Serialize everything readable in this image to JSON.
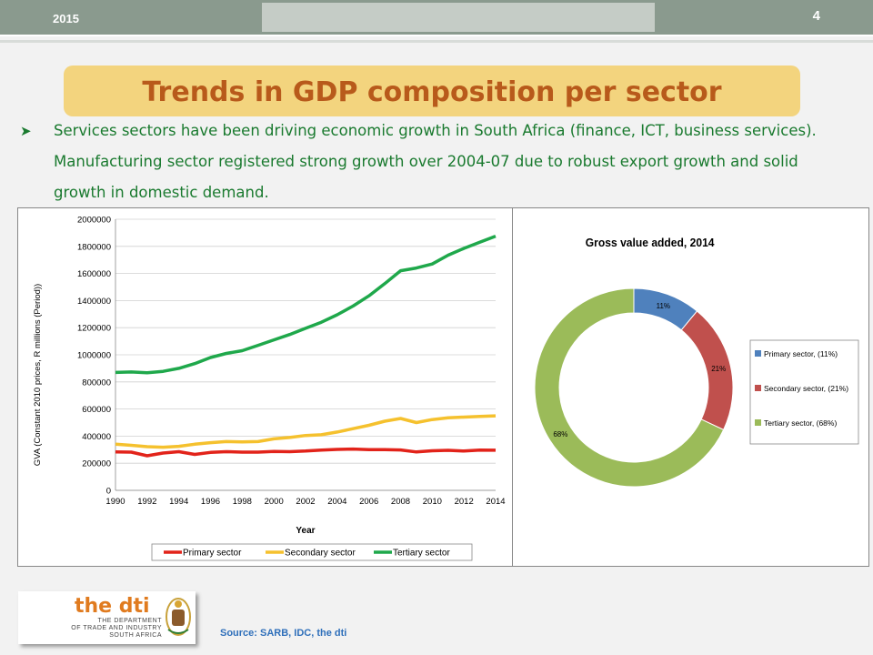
{
  "header": {
    "year": "2015",
    "page_number": "4"
  },
  "title": "Trends in GDP composition per sector",
  "bullet": "Services sectors have been driving economic growth in South Africa (finance, ICT, business services). Manufacturing sector registered strong growth over 2004-07 due to robust export growth and solid growth in domestic demand.",
  "source": "Source: SARB, IDC, the dti",
  "logo": {
    "name": "the dti",
    "dept_line1": "THE DEPARTMENT",
    "dept_line2": "OF TRADE AND INDUSTRY",
    "dept_line3": "SOUTH AFRICA"
  },
  "colors": {
    "primary": "#e2231a",
    "secondary": "#f5c12e",
    "tertiary": "#1fa84b",
    "pie_primary": "#4f81bd",
    "pie_secondary": "#c0504d",
    "pie_tertiary": "#9bbb59",
    "title_bg": "#f3d47e",
    "title_text": "#b85a1b",
    "body_text": "#1a7a2f"
  },
  "chart_data": [
    {
      "type": "line",
      "title": "",
      "xlabel": "Year",
      "ylabel": "GVA (Constant 2010 prices, R millions (Period))",
      "x": [
        1990,
        1991,
        1992,
        1993,
        1994,
        1995,
        1996,
        1997,
        1998,
        1999,
        2000,
        2001,
        2002,
        2003,
        2004,
        2005,
        2006,
        2007,
        2008,
        2009,
        2010,
        2011,
        2012,
        2013,
        2014
      ],
      "x_ticks": [
        1990,
        1992,
        1994,
        1996,
        1998,
        2000,
        2002,
        2004,
        2006,
        2008,
        2010,
        2012,
        2014
      ],
      "ylim": [
        0,
        2000000
      ],
      "y_ticks": [
        0,
        200000,
        400000,
        600000,
        800000,
        1000000,
        1200000,
        1400000,
        1600000,
        1800000,
        2000000
      ],
      "grid": true,
      "legend_position": "bottom",
      "series": [
        {
          "name": "Primary sector",
          "values": [
            283000,
            282000,
            255000,
            275000,
            285000,
            265000,
            280000,
            285000,
            282000,
            282000,
            287000,
            285000,
            290000,
            297000,
            302000,
            305000,
            300000,
            300000,
            298000,
            283000,
            292000,
            295000,
            290000,
            297000,
            296000
          ]
        },
        {
          "name": "Secondary sector",
          "values": [
            340000,
            332000,
            322000,
            318000,
            325000,
            340000,
            352000,
            360000,
            358000,
            360000,
            380000,
            390000,
            405000,
            410000,
            430000,
            455000,
            480000,
            510000,
            530000,
            500000,
            522000,
            535000,
            540000,
            545000,
            550000
          ]
        },
        {
          "name": "Tertiary sector",
          "values": [
            870000,
            873000,
            868000,
            878000,
            900000,
            935000,
            980000,
            1010000,
            1030000,
            1070000,
            1110000,
            1150000,
            1195000,
            1240000,
            1295000,
            1360000,
            1435000,
            1525000,
            1620000,
            1640000,
            1670000,
            1735000,
            1785000,
            1830000,
            1875000
          ]
        }
      ]
    },
    {
      "type": "pie",
      "title": "Gross value added, 2014",
      "donut": true,
      "legend_position": "right",
      "slices": [
        {
          "name": "Primary sector, (11%)",
          "value": 11,
          "label": "11%"
        },
        {
          "name": "Secondary sector, (21%)",
          "value": 21,
          "label": "21%"
        },
        {
          "name": "Tertiary sector, (68%)",
          "value": 68,
          "label": "68%"
        }
      ]
    }
  ]
}
